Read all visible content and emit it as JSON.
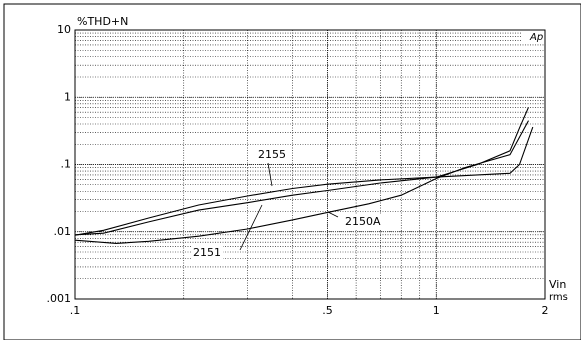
{
  "chart_data": {
    "type": "line",
    "y_label": "%THD+N",
    "x_label": "Vin",
    "x_unit": "rms",
    "logo": "Ap",
    "xlog": true,
    "ylog": true,
    "grid": true,
    "xlim": [
      0.1,
      2
    ],
    "ylim": [
      0.001,
      10
    ],
    "xticks": [
      {
        "value": 0.1,
        "label": ".1"
      },
      {
        "value": 0.5,
        "label": ".5"
      },
      1,
      2
    ],
    "yticks": [
      {
        "value": 0.001,
        "label": ".001"
      },
      {
        "value": 0.01,
        "label": ".01"
      },
      {
        "value": 0.1,
        "label": ".1"
      },
      1,
      10
    ],
    "series": [
      {
        "name": "2155",
        "color": "#000000",
        "x": [
          0.1,
          0.12,
          0.16,
          0.22,
          0.3,
          0.4,
          0.5,
          0.7,
          1,
          1.3,
          1.6,
          1.7,
          1.8
        ],
        "values": [
          0.0089,
          0.0105,
          0.016,
          0.025,
          0.034,
          0.044,
          0.051,
          0.059,
          0.065,
          0.1,
          0.16,
          0.35,
          0.71
        ]
      },
      {
        "name": "2150A",
        "color": "#000000",
        "x": [
          0.1,
          0.12,
          0.16,
          0.22,
          0.3,
          0.4,
          0.5,
          0.7,
          1,
          1.3,
          1.6,
          1.7,
          1.85
        ],
        "values": [
          0.009,
          0.0095,
          0.014,
          0.021,
          0.027,
          0.035,
          0.041,
          0.053,
          0.065,
          0.07,
          0.074,
          0.1,
          0.36
        ]
      },
      {
        "name": "2151",
        "color": "#000000",
        "x": [
          0.1,
          0.13,
          0.16,
          0.22,
          0.3,
          0.4,
          0.5,
          0.65,
          0.8,
          1,
          1.2,
          1.6,
          1.8
        ],
        "values": [
          0.0075,
          0.0067,
          0.0072,
          0.0086,
          0.011,
          0.015,
          0.0194,
          0.026,
          0.035,
          0.062,
          0.09,
          0.14,
          0.45
        ]
      }
    ]
  }
}
